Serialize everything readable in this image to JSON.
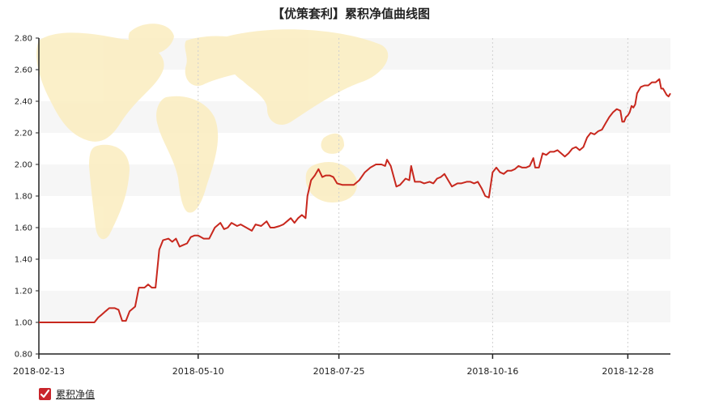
{
  "colors": {
    "line": "#c8281e",
    "band": "#f6f6f6",
    "grid": "#d0d0d0",
    "axis": "#222222",
    "map": "#fbeec3",
    "legend_box": "#c9252b"
  },
  "chart_data": {
    "type": "line",
    "title": "【优策套利】累积净值曲线图",
    "xlabel": "",
    "ylabel": "",
    "ylim": [
      0.8,
      2.8
    ],
    "yticks": [
      "0.80",
      "1.00",
      "1.20",
      "1.40",
      "1.60",
      "1.80",
      "2.00",
      "2.20",
      "2.40",
      "2.60",
      "2.80"
    ],
    "xticks": [
      "2018-02-13",
      "2018-05-10",
      "2018-07-25",
      "2018-10-16",
      "2018-12-28"
    ],
    "grid": "vertical dotted lines at x ticks, alternating horizontal bands",
    "legend_position": "bottom-left",
    "series": [
      {
        "name": "累积净值",
        "points": [
          [
            "2018-02-13",
            1.0
          ],
          [
            "2018-02-20",
            1.0
          ],
          [
            "2018-02-27",
            1.0
          ],
          [
            "2018-03-06",
            1.0
          ],
          [
            "2018-03-12",
            1.0
          ],
          [
            "2018-03-15",
            1.0
          ],
          [
            "2018-03-17",
            1.03
          ],
          [
            "2018-03-19",
            1.05
          ],
          [
            "2018-03-21",
            1.07
          ],
          [
            "2018-03-23",
            1.09
          ],
          [
            "2018-03-26",
            1.09
          ],
          [
            "2018-03-28",
            1.08
          ],
          [
            "2018-03-30",
            1.01
          ],
          [
            "2018-04-01",
            1.01
          ],
          [
            "2018-04-03",
            1.07
          ],
          [
            "2018-04-06",
            1.1
          ],
          [
            "2018-04-08",
            1.22
          ],
          [
            "2018-04-11",
            1.22
          ],
          [
            "2018-04-13",
            1.24
          ],
          [
            "2018-04-15",
            1.22
          ],
          [
            "2018-04-17",
            1.22
          ],
          [
            "2018-04-19",
            1.46
          ],
          [
            "2018-04-21",
            1.52
          ],
          [
            "2018-04-24",
            1.53
          ],
          [
            "2018-04-26",
            1.51
          ],
          [
            "2018-04-28",
            1.53
          ],
          [
            "2018-04-30",
            1.48
          ],
          [
            "2018-05-02",
            1.49
          ],
          [
            "2018-05-04",
            1.5
          ],
          [
            "2018-05-06",
            1.54
          ],
          [
            "2018-05-08",
            1.55
          ],
          [
            "2018-05-10",
            1.55
          ],
          [
            "2018-05-13",
            1.53
          ],
          [
            "2018-05-16",
            1.53
          ],
          [
            "2018-05-19",
            1.6
          ],
          [
            "2018-05-22",
            1.63
          ],
          [
            "2018-05-24",
            1.59
          ],
          [
            "2018-05-26",
            1.6
          ],
          [
            "2018-05-28",
            1.63
          ],
          [
            "2018-05-31",
            1.61
          ],
          [
            "2018-06-02",
            1.62
          ],
          [
            "2018-06-05",
            1.6
          ],
          [
            "2018-06-08",
            1.58
          ],
          [
            "2018-06-10",
            1.62
          ],
          [
            "2018-06-13",
            1.61
          ],
          [
            "2018-06-16",
            1.64
          ],
          [
            "2018-06-18",
            1.6
          ],
          [
            "2018-06-20",
            1.6
          ],
          [
            "2018-06-23",
            1.61
          ],
          [
            "2018-06-25",
            1.62
          ],
          [
            "2018-06-27",
            1.64
          ],
          [
            "2018-06-29",
            1.66
          ],
          [
            "2018-07-01",
            1.63
          ],
          [
            "2018-07-03",
            1.66
          ],
          [
            "2018-07-05",
            1.68
          ],
          [
            "2018-07-07",
            1.66
          ],
          [
            "2018-07-08",
            1.8
          ],
          [
            "2018-07-10",
            1.9
          ],
          [
            "2018-07-12",
            1.93
          ],
          [
            "2018-07-14",
            1.97
          ],
          [
            "2018-07-16",
            1.92
          ],
          [
            "2018-07-18",
            1.93
          ],
          [
            "2018-07-20",
            1.93
          ],
          [
            "2018-07-22",
            1.92
          ],
          [
            "2018-07-24",
            1.88
          ],
          [
            "2018-07-27",
            1.87
          ],
          [
            "2018-07-30",
            1.87
          ],
          [
            "2018-08-02",
            1.87
          ],
          [
            "2018-08-05",
            1.9
          ],
          [
            "2018-08-08",
            1.95
          ],
          [
            "2018-08-11",
            1.98
          ],
          [
            "2018-08-14",
            2.0
          ],
          [
            "2018-08-17",
            2.0
          ],
          [
            "2018-08-19",
            1.99
          ],
          [
            "2018-08-20",
            2.03
          ],
          [
            "2018-08-22",
            1.99
          ],
          [
            "2018-08-25",
            1.86
          ],
          [
            "2018-08-27",
            1.87
          ],
          [
            "2018-08-30",
            1.91
          ],
          [
            "2018-09-01",
            1.9
          ],
          [
            "2018-09-02",
            1.99
          ],
          [
            "2018-09-04",
            1.89
          ],
          [
            "2018-09-07",
            1.89
          ],
          [
            "2018-09-09",
            1.88
          ],
          [
            "2018-09-12",
            1.89
          ],
          [
            "2018-09-14",
            1.88
          ],
          [
            "2018-09-16",
            1.91
          ],
          [
            "2018-09-18",
            1.92
          ],
          [
            "2018-09-20",
            1.94
          ],
          [
            "2018-09-22",
            1.9
          ],
          [
            "2018-09-24",
            1.86
          ],
          [
            "2018-09-27",
            1.88
          ],
          [
            "2018-09-29",
            1.88
          ],
          [
            "2018-10-02",
            1.89
          ],
          [
            "2018-10-04",
            1.89
          ],
          [
            "2018-10-06",
            1.88
          ],
          [
            "2018-10-08",
            1.89
          ],
          [
            "2018-10-10",
            1.85
          ],
          [
            "2018-10-12",
            1.8
          ],
          [
            "2018-10-14",
            1.79
          ],
          [
            "2018-10-16",
            1.95
          ],
          [
            "2018-10-18",
            1.98
          ],
          [
            "2018-10-20",
            1.95
          ],
          [
            "2018-10-22",
            1.94
          ],
          [
            "2018-10-24",
            1.96
          ],
          [
            "2018-10-26",
            1.96
          ],
          [
            "2018-10-28",
            1.97
          ],
          [
            "2018-10-30",
            1.99
          ],
          [
            "2018-11-01",
            1.98
          ],
          [
            "2018-11-03",
            1.98
          ],
          [
            "2018-11-05",
            1.99
          ],
          [
            "2018-11-07",
            2.04
          ],
          [
            "2018-11-08",
            1.98
          ],
          [
            "2018-11-10",
            1.98
          ],
          [
            "2018-11-12",
            2.07
          ],
          [
            "2018-11-14",
            2.06
          ],
          [
            "2018-11-16",
            2.08
          ],
          [
            "2018-11-18",
            2.08
          ],
          [
            "2018-11-20",
            2.09
          ],
          [
            "2018-11-22",
            2.07
          ],
          [
            "2018-11-24",
            2.05
          ],
          [
            "2018-11-26",
            2.07
          ],
          [
            "2018-11-28",
            2.1
          ],
          [
            "2018-11-30",
            2.11
          ],
          [
            "2018-12-02",
            2.09
          ],
          [
            "2018-12-04",
            2.11
          ],
          [
            "2018-12-06",
            2.17
          ],
          [
            "2018-12-08",
            2.2
          ],
          [
            "2018-12-10",
            2.19
          ],
          [
            "2018-12-12",
            2.21
          ],
          [
            "2018-12-14",
            2.22
          ],
          [
            "2018-12-16",
            2.26
          ],
          [
            "2018-12-18",
            2.3
          ],
          [
            "2018-12-20",
            2.33
          ],
          [
            "2018-12-22",
            2.35
          ],
          [
            "2018-12-24",
            2.34
          ],
          [
            "2018-12-25",
            2.27
          ],
          [
            "2018-12-26",
            2.27
          ],
          [
            "2018-12-27",
            2.3
          ],
          [
            "2018-12-28",
            2.31
          ],
          [
            "2018-12-29",
            2.33
          ],
          [
            "2018-12-30",
            2.37
          ],
          [
            "2018-12-31",
            2.36
          ],
          [
            "2019-01-01",
            2.38
          ],
          [
            "2019-01-02",
            2.45
          ],
          [
            "2019-01-04",
            2.49
          ],
          [
            "2019-01-06",
            2.5
          ],
          [
            "2019-01-08",
            2.5
          ],
          [
            "2019-01-10",
            2.52
          ],
          [
            "2019-01-12",
            2.52
          ],
          [
            "2019-01-14",
            2.54
          ],
          [
            "2019-01-15",
            2.48
          ],
          [
            "2019-01-16",
            2.48
          ],
          [
            "2019-01-18",
            2.44
          ],
          [
            "2019-01-19",
            2.43
          ],
          [
            "2019-01-20",
            2.45
          ]
        ]
      }
    ]
  }
}
